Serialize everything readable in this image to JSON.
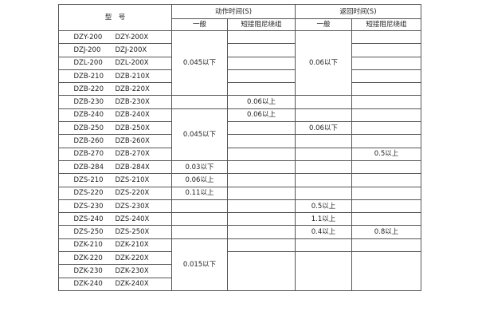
{
  "header": {
    "model": "型　号",
    "action_time": "动作时间(S)",
    "return_time": "返回时间(S)",
    "general": "一般",
    "short_damping": "短接阻尼绕组"
  },
  "rows": [
    {
      "model_a": "DZY-200",
      "model_b": "DZY-200X",
      "act_general": "0.045以下",
      "act_short": "",
      "ret_general": "0.06以下",
      "ret_short": ""
    },
    {
      "model_a": "DZJ-200",
      "model_b": "DZJ-200X",
      "act_short": "",
      "ret_short": ""
    },
    {
      "model_a": "DZL-200",
      "model_b": "DZL-200X",
      "act_short": "",
      "ret_short": ""
    },
    {
      "model_a": "DZB-210",
      "model_b": "DZB-210X",
      "act_short": "",
      "ret_short": ""
    },
    {
      "model_a": "DZB-220",
      "model_b": "DZB-220X",
      "act_short": "",
      "ret_short": ""
    },
    {
      "model_a": "DZB-230",
      "model_b": "DZB-230X",
      "act_general": "",
      "act_short": "0.06以上",
      "ret_general": "",
      "ret_short": ""
    },
    {
      "model_a": "DZB-240",
      "model_b": "DZB-240X",
      "act_general": "0.045以下",
      "act_short": "0.06以上",
      "ret_general": "",
      "ret_short": ""
    },
    {
      "model_a": "DZB-250",
      "model_b": "DZB-250X",
      "act_short": "",
      "ret_general": "0.06以下",
      "ret_short": ""
    },
    {
      "model_a": "DZB-260",
      "model_b": "DZB-260X",
      "act_short": "",
      "ret_general": "",
      "ret_short": ""
    },
    {
      "model_a": "DZB-270",
      "model_b": "DZB-270X",
      "act_short": "",
      "ret_general": "",
      "ret_short": "0.5以上"
    },
    {
      "model_a": "DZB-284",
      "model_b": "DZB-284X",
      "act_general": "0.03以下",
      "act_short": "",
      "ret_general": "",
      "ret_short": ""
    },
    {
      "model_a": "DZS-210",
      "model_b": "DZS-210X",
      "act_general": "0.06以上",
      "act_short": "",
      "ret_general": "",
      "ret_short": ""
    },
    {
      "model_a": "DZS-220",
      "model_b": "DZS-220X",
      "act_general": "0.11以上",
      "act_short": "",
      "ret_general": "",
      "ret_short": ""
    },
    {
      "model_a": "DZS-230",
      "model_b": "DZS-230X",
      "act_general": "",
      "act_short": "",
      "ret_general": "0.5以上",
      "ret_short": ""
    },
    {
      "model_a": "DZS-240",
      "model_b": "DZS-240X",
      "act_general": "",
      "act_short": "",
      "ret_general": "1.1以上",
      "ret_short": ""
    },
    {
      "model_a": "DZS-250",
      "model_b": "DZS-250X",
      "act_general": "",
      "act_short": "",
      "ret_general": "0.4以上",
      "ret_short": "0.8以上"
    },
    {
      "model_a": "DZK-210",
      "model_b": "DZK-210X",
      "act_general": "0.015以下",
      "act_short": "",
      "ret_general": "",
      "ret_short": ""
    },
    {
      "model_a": "DZK-220",
      "model_b": "DZK-220X",
      "act_short": "",
      "ret_general": "",
      "ret_short": ""
    },
    {
      "model_a": "DZK-230",
      "model_b": "DZK-230X"
    },
    {
      "model_a": "DZK-240",
      "model_b": "DZK-240X"
    }
  ]
}
